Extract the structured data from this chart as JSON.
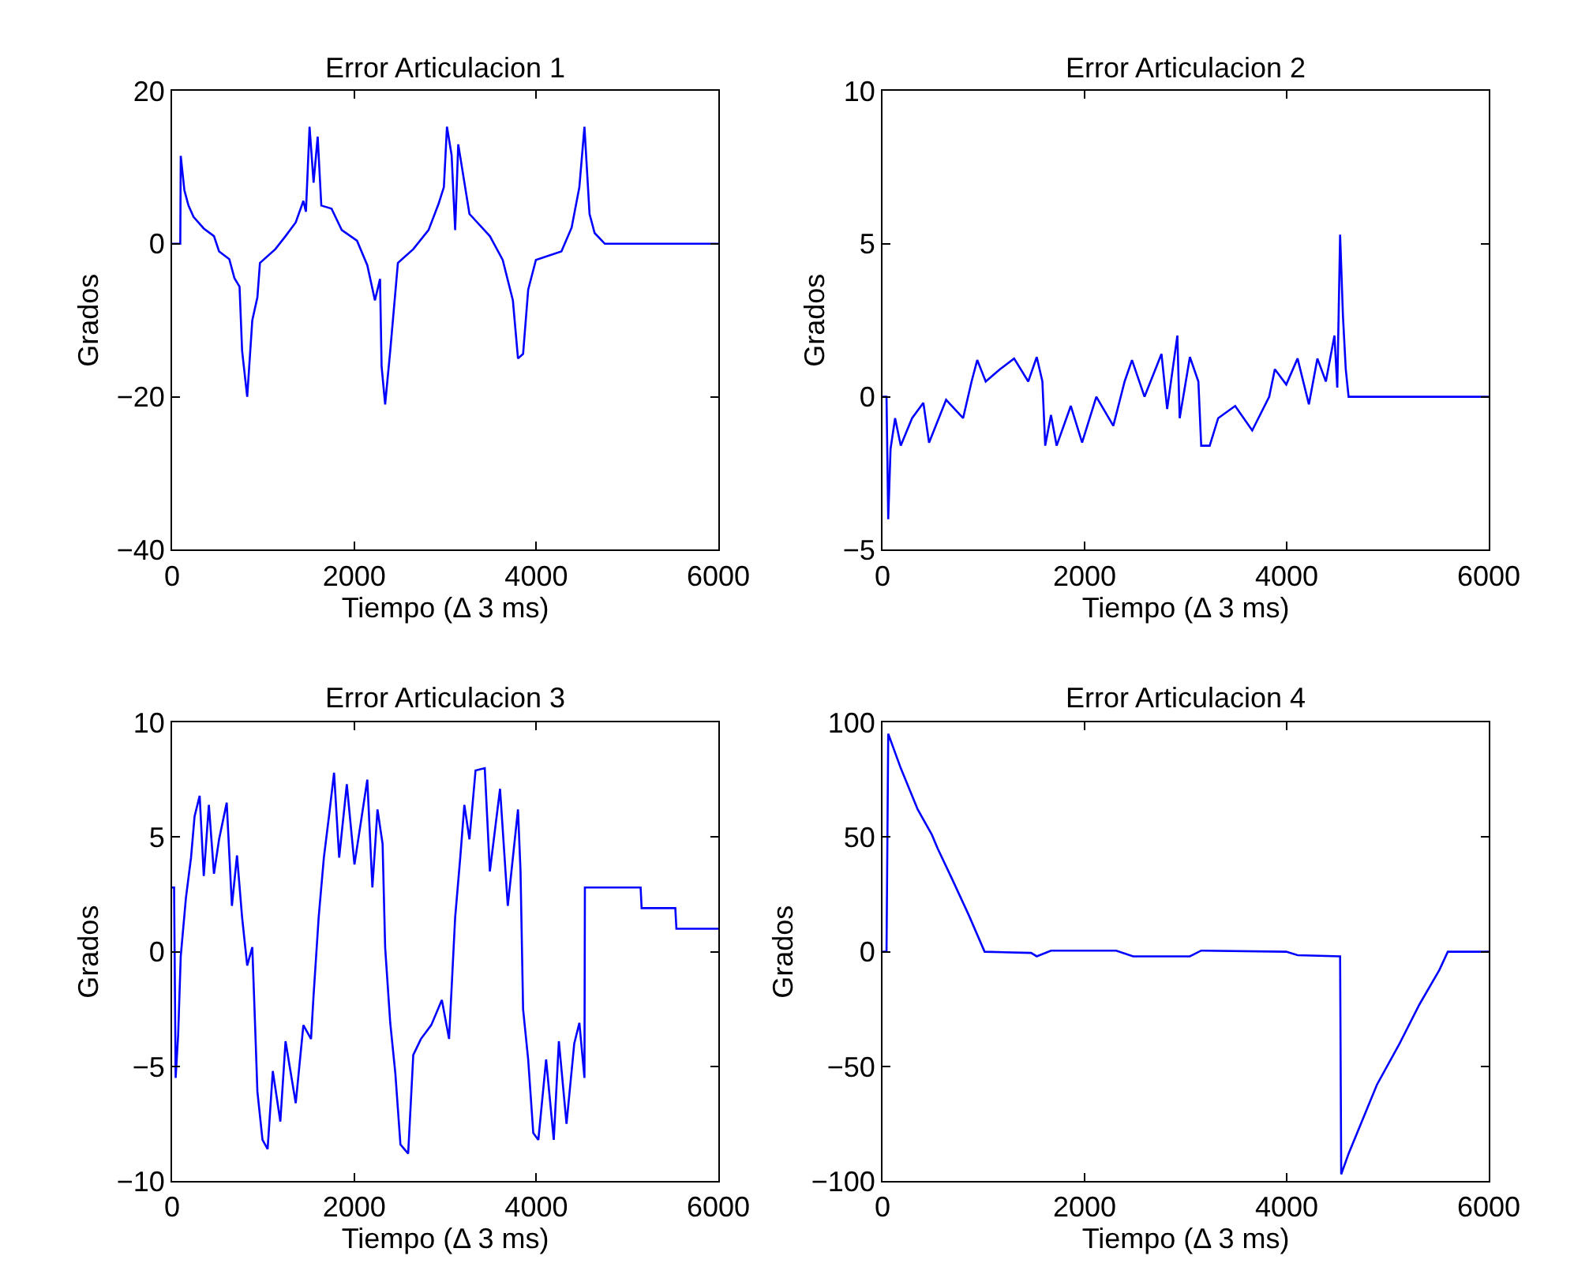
{
  "chart_data": [
    {
      "type": "line",
      "title": "Error Articulacion 1",
      "xlabel": "Tiempo (Δ 3 ms)",
      "ylabel": "Grados",
      "xlim": [
        0,
        6000
      ],
      "ylim": [
        -40,
        20
      ],
      "xticks": [
        0,
        2000,
        4000,
        6000
      ],
      "yticks": [
        -40,
        -20,
        0,
        20
      ],
      "x": [
        0,
        90,
        95,
        135,
        180,
        236,
        348,
        460,
        516,
        628,
        685,
        741,
        769,
        825,
        881,
        937,
        965,
        1134,
        1246,
        1358,
        1442,
        1470,
        1510,
        1554,
        1599,
        1639,
        1751,
        1863,
        2031,
        2144,
        2228,
        2284,
        2301,
        2340,
        2396,
        2480,
        2649,
        2817,
        2929,
        2985,
        3019,
        3070,
        3109,
        3143,
        3266,
        3490,
        3631,
        3743,
        3799,
        3855,
        3911,
        3996,
        4276,
        4388,
        4473,
        4529,
        4585,
        4641,
        4753,
        6000
      ],
      "series": [
        {
          "color": "#0000ff",
          "values": [
            0,
            0,
            11.5,
            7,
            5,
            3.5,
            2,
            1,
            -1,
            -2,
            -4.5,
            -5.6,
            -14,
            -20,
            -10,
            -7,
            -2.5,
            -0.7,
            1,
            2.8,
            5.6,
            4.2,
            15.3,
            8,
            14,
            5,
            4.6,
            1.8,
            0.4,
            -2.8,
            -7.4,
            -4.6,
            -16,
            -21,
            -14,
            -2.5,
            -0.7,
            1.8,
            5.3,
            7.4,
            15.3,
            11.6,
            1.8,
            13,
            3.9,
            1,
            -2.1,
            -7.4,
            -15,
            -14.4,
            -6,
            -2.1,
            -1,
            2.1,
            7.4,
            15.3,
            3.9,
            1.4,
            0,
            0
          ]
        }
      ]
    },
    {
      "type": "line",
      "title": "Error Articulacion 2",
      "xlabel": "Tiempo (Δ 3 ms)",
      "ylabel": "Grados",
      "xlim": [
        0,
        6000
      ],
      "ylim": [
        -5,
        10
      ],
      "xticks": [
        0,
        2000,
        4000,
        6000
      ],
      "yticks": [
        -5,
        0,
        5,
        10
      ],
      "x": [
        0,
        39,
        56,
        79,
        124,
        180,
        292,
        404,
        460,
        629,
        797,
        881,
        937,
        1021,
        1162,
        1302,
        1442,
        1526,
        1582,
        1610,
        1667,
        1723,
        1863,
        1975,
        2116,
        2284,
        2396,
        2469,
        2593,
        2761,
        2817,
        2918,
        2941,
        3042,
        3126,
        3154,
        3238,
        3322,
        3490,
        3659,
        3827,
        3883,
        3996,
        4108,
        4220,
        4304,
        4388,
        4473,
        4501,
        4529,
        4557,
        4585,
        4613,
        6000
      ],
      "series": [
        {
          "color": "#0000ff",
          "values": [
            0,
            0,
            -4,
            -1.7,
            -0.7,
            -1.6,
            -0.7,
            -0.2,
            -1.5,
            -0.1,
            -0.7,
            0.5,
            1.2,
            0.5,
            0.9,
            1.25,
            0.5,
            1.3,
            0.5,
            -1.6,
            -0.6,
            -1.6,
            -0.3,
            -1.5,
            0,
            -0.95,
            0.5,
            1.2,
            0,
            1.4,
            -0.4,
            2,
            -0.7,
            1.3,
            0.5,
            -1.6,
            -1.6,
            -0.7,
            -0.3,
            -1.1,
            0,
            0.9,
            0.4,
            1.25,
            -0.25,
            1.25,
            0.5,
            2,
            0.3,
            5.3,
            2.65,
            0.9,
            0,
            0
          ]
        }
      ]
    },
    {
      "type": "line",
      "title": "Error Articulacion 3",
      "xlabel": "Tiempo (Δ 3 ms)",
      "ylabel": "Grados",
      "xlim": [
        0,
        6000
      ],
      "ylim": [
        -10,
        10
      ],
      "xticks": [
        0,
        2000,
        4000,
        6000
      ],
      "yticks": [
        -10,
        -5,
        0,
        5,
        10
      ],
      "x": [
        0,
        22,
        39,
        67,
        95,
        152,
        208,
        247,
        303,
        348,
        404,
        460,
        516,
        600,
        657,
        713,
        769,
        825,
        881,
        909,
        937,
        993,
        1049,
        1106,
        1189,
        1246,
        1358,
        1442,
        1526,
        1554,
        1610,
        1667,
        1723,
        1779,
        1835,
        1919,
        2003,
        2144,
        2200,
        2256,
        2312,
        2340,
        2396,
        2452,
        2508,
        2593,
        2649,
        2733,
        2846,
        2963,
        3042,
        3109,
        3165,
        3210,
        3266,
        3333,
        3434,
        3490,
        3602,
        3687,
        3799,
        3827,
        3855,
        3911,
        3967,
        4023,
        4108,
        4192,
        4248,
        4332,
        4417,
        4473,
        4529,
        4534,
        5146,
        5157,
        5527,
        5539,
        6000
      ],
      "series": [
        {
          "color": "#0000ff",
          "values": [
            2.8,
            2.8,
            -5.5,
            -3.6,
            -0.2,
            2.35,
            4.1,
            5.9,
            6.8,
            3.3,
            6.4,
            3.4,
            4.9,
            6.5,
            2,
            4.2,
            1.5,
            -0.6,
            0.2,
            -2.9,
            -6.1,
            -8.2,
            -8.6,
            -5.2,
            -7.4,
            -3.9,
            -6.6,
            -3.2,
            -3.8,
            -1.9,
            1.5,
            4.1,
            5.9,
            7.8,
            4.1,
            7.3,
            3.8,
            7.5,
            2.8,
            6.2,
            4.7,
            0.2,
            -3.1,
            -5.3,
            -8.4,
            -8.8,
            -4.5,
            -3.8,
            -3.2,
            -2.1,
            -3.8,
            1.5,
            4.1,
            6.4,
            4.9,
            7.9,
            8,
            3.5,
            7.1,
            2,
            6.2,
            3.5,
            -2.5,
            -4.7,
            -7.9,
            -8.2,
            -4.7,
            -8.2,
            -3.9,
            -7.5,
            -4,
            -3.1,
            -5.5,
            2.8,
            2.8,
            1.9,
            1.9,
            1,
            1
          ]
        }
      ]
    },
    {
      "type": "line",
      "title": "Error Articulacion 4",
      "xlabel": "Tiempo (Δ 3 ms)",
      "ylabel": "Grados",
      "xlim": [
        0,
        6000
      ],
      "ylim": [
        -100,
        100
      ],
      "xticks": [
        0,
        2000,
        4000,
        6000
      ],
      "yticks": [
        -100,
        -50,
        0,
        50,
        100
      ],
      "x": [
        0,
        39,
        56,
        180,
        348,
        488,
        545,
        685,
        853,
        1010,
        1470,
        1526,
        1667,
        2312,
        2480,
        3042,
        3154,
        3996,
        4108,
        4529,
        4540,
        4613,
        4893,
        5118,
        5314,
        5511,
        5595,
        6000
      ],
      "series": [
        {
          "color": "#0000ff",
          "values": [
            0,
            0,
            95,
            80,
            62,
            51,
            45,
            32,
            16,
            0,
            -0.5,
            -2,
            0.5,
            0.5,
            -2,
            -2,
            0.5,
            0,
            -1.5,
            -2,
            -97,
            -88,
            -58,
            -40,
            -23,
            -8,
            0,
            0
          ]
        }
      ]
    }
  ]
}
